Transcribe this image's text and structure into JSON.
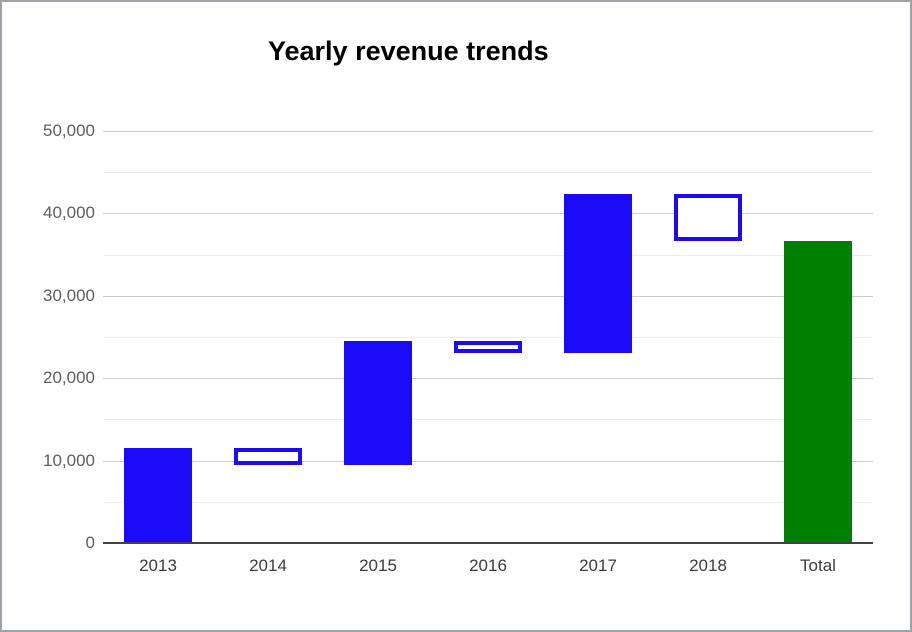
{
  "window": {
    "background": "#ffffff",
    "border_color": "#a1a1a9"
  },
  "chart_data": {
    "type": "bar",
    "subtype": "waterfall",
    "title": "Yearly revenue trends",
    "xlabel": "",
    "ylabel": "",
    "grid": true,
    "legend": "none",
    "categories": [
      "2013",
      "2014",
      "2015",
      "2016",
      "2017",
      "2018",
      "Total"
    ],
    "bars": [
      {
        "label": "2013",
        "start": 0,
        "end": 11500,
        "delta": 11500,
        "kind": "increase"
      },
      {
        "label": "2014",
        "start": 11500,
        "end": 9500,
        "delta": -2000,
        "kind": "decrease"
      },
      {
        "label": "2015",
        "start": 9500,
        "end": 24500,
        "delta": 15000,
        "kind": "increase"
      },
      {
        "label": "2016",
        "start": 24500,
        "end": 23000,
        "delta": -1500,
        "kind": "decrease"
      },
      {
        "label": "2017",
        "start": 23000,
        "end": 42300,
        "delta": 19300,
        "kind": "increase"
      },
      {
        "label": "2018",
        "start": 42300,
        "end": 36600,
        "delta": -5700,
        "kind": "decrease"
      },
      {
        "label": "Total",
        "start": 0,
        "end": 36600,
        "delta": 36600,
        "kind": "total"
      }
    ],
    "y_axis": {
      "min": 0,
      "max": 50000,
      "major_step": 10000,
      "minor_step": 5000,
      "tick_labels": [
        "0",
        "10,000",
        "20,000",
        "30,000",
        "40,000",
        "50,000"
      ]
    },
    "colors": {
      "increase_fill": "#1b0af5",
      "decrease_fill": "#ffffff",
      "decrease_stroke": "#1b0af5",
      "total_fill": "#008000",
      "major_grid": "#cccccc",
      "minor_grid": "#ededed",
      "axis_line": "#424242",
      "y_tick_color": "#5e5e5e",
      "x_tick_color": "#3c3c3c",
      "title_color": "#000000"
    }
  }
}
